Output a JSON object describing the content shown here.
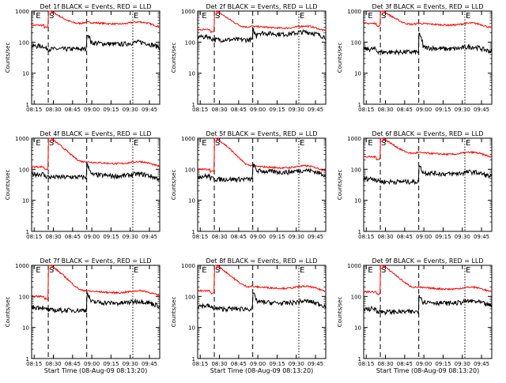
{
  "chart_data": [
    {
      "type": "line",
      "title": "Det 1f BLACK = Events, RED = LLD",
      "ylabel": "Counts/sec",
      "xlabel": "",
      "x_ticks": [
        "08:15",
        "08:30",
        "08:45",
        "09:00",
        "09:15",
        "09:30",
        "09:45"
      ],
      "y_ticks": [
        "1",
        "10",
        "100",
        "1000"
      ],
      "yscale": "log",
      "ylim": [
        1,
        1000
      ],
      "markers": [
        {
          "label": "E",
          "at": "08:15"
        },
        {
          "label": "S",
          "at": "08:26"
        },
        {
          "label": "E",
          "at": "09:32"
        }
      ],
      "series": [
        {
          "color": "#ff0000",
          "base": 350,
          "peak": 1100,
          "tail": 380
        },
        {
          "color": "#000000",
          "base": 75,
          "peak": 200,
          "tail": 85
        }
      ]
    },
    {
      "type": "line",
      "title": "Det 2f BLACK = Events, RED = LLD",
      "ylabel": "Counts/sec",
      "xlabel": "",
      "x_ticks": [
        "08:15",
        "08:30",
        "08:45",
        "09:00",
        "09:15",
        "09:30",
        "09:45"
      ],
      "y_ticks": [
        "1",
        "10",
        "100",
        "1000"
      ],
      "yscale": "log",
      "ylim": [
        1,
        1000
      ],
      "markers": [
        {
          "label": "E",
          "at": "08:15"
        },
        {
          "label": "S",
          "at": "08:26"
        },
        {
          "label": "E",
          "at": "09:32"
        }
      ],
      "series": [
        {
          "color": "#ff0000",
          "base": 250,
          "peak": 1100,
          "tail": 280
        },
        {
          "color": "#000000",
          "base": 150,
          "peak": 250,
          "tail": 180
        }
      ]
    },
    {
      "type": "line",
      "title": "Det 3f BLACK = Events, RED = LLD",
      "ylabel": "Counts/sec",
      "xlabel": "",
      "x_ticks": [
        "08:15",
        "08:30",
        "08:45",
        "09:00",
        "09:15",
        "09:30",
        "09:45"
      ],
      "y_ticks": [
        "1",
        "10",
        "100",
        "1000"
      ],
      "yscale": "log",
      "ylim": [
        1,
        1000
      ],
      "markers": [
        {
          "label": "E",
          "at": "08:15"
        },
        {
          "label": "S",
          "at": "08:26"
        },
        {
          "label": "E",
          "at": "09:32"
        }
      ],
      "series": [
        {
          "color": "#ff0000",
          "base": 400,
          "peak": 1100,
          "tail": 350
        },
        {
          "color": "#000000",
          "base": 60,
          "peak": 180,
          "tail": 60
        }
      ]
    },
    {
      "type": "line",
      "title": "Det 4f BLACK = Events, RED = LLD",
      "ylabel": "Counts/sec",
      "xlabel": "",
      "x_ticks": [
        "08:15",
        "08:30",
        "08:45",
        "09:00",
        "09:15",
        "09:30",
        "09:45"
      ],
      "y_ticks": [
        "1",
        "10",
        "100",
        "1000"
      ],
      "yscale": "log",
      "ylim": [
        1,
        1000
      ],
      "markers": [
        {
          "label": "E",
          "at": "08:15"
        },
        {
          "label": "S",
          "at": "08:26"
        },
        {
          "label": "E",
          "at": "09:32"
        }
      ],
      "series": [
        {
          "color": "#ff0000",
          "base": 120,
          "peak": 1100,
          "tail": 150
        },
        {
          "color": "#000000",
          "base": 70,
          "peak": 150,
          "tail": 60
        }
      ]
    },
    {
      "type": "line",
      "title": "Det 5f BLACK = Events, RED = LLD",
      "ylabel": "Counts/sec",
      "xlabel": "",
      "x_ticks": [
        "08:15",
        "08:30",
        "08:45",
        "09:00",
        "09:15",
        "09:30",
        "09:45"
      ],
      "y_ticks": [
        "1",
        "10",
        "100",
        "1000"
      ],
      "yscale": "log",
      "ylim": [
        1,
        1000
      ],
      "markers": [
        {
          "label": "E",
          "at": "08:15"
        },
        {
          "label": "S",
          "at": "08:26"
        },
        {
          "label": "E",
          "at": "09:32"
        }
      ],
      "series": [
        {
          "color": "#ff0000",
          "base": 100,
          "peak": 1100,
          "tail": 110
        },
        {
          "color": "#000000",
          "base": 60,
          "peak": 150,
          "tail": 80
        }
      ]
    },
    {
      "type": "line",
      "title": "Det 6f BLACK = Events, RED = LLD",
      "ylabel": "Counts/sec",
      "xlabel": "",
      "x_ticks": [
        "08:15",
        "08:30",
        "08:45",
        "09:00",
        "09:15",
        "09:30",
        "09:45"
      ],
      "y_ticks": [
        "1",
        "10",
        "100",
        "1000"
      ],
      "yscale": "log",
      "ylim": [
        1,
        1000
      ],
      "markers": [
        {
          "label": "E",
          "at": "08:15"
        },
        {
          "label": "S",
          "at": "08:26"
        },
        {
          "label": "E",
          "at": "09:32"
        }
      ],
      "series": [
        {
          "color": "#ff0000",
          "base": 250,
          "peak": 1100,
          "tail": 300
        },
        {
          "color": "#000000",
          "base": 50,
          "peak": 140,
          "tail": 70
        }
      ]
    },
    {
      "type": "line",
      "title": "Det 7f BLACK = Events, RED = LLD",
      "ylabel": "Counts/sec",
      "xlabel": "Start Time (08-Aug-09 08:13:20)",
      "x_ticks": [
        "08:15",
        "08:30",
        "08:45",
        "09:00",
        "09:15",
        "09:30",
        "09:45"
      ],
      "y_ticks": [
        "1",
        "10",
        "100",
        "1000"
      ],
      "yscale": "log",
      "ylim": [
        1,
        1000
      ],
      "markers": [
        {
          "label": "E",
          "at": "08:15"
        },
        {
          "label": "S",
          "at": "08:26"
        },
        {
          "label": "E",
          "at": "09:32"
        }
      ],
      "series": [
        {
          "color": "#ff0000",
          "base": 100,
          "peak": 1100,
          "tail": 130
        },
        {
          "color": "#000000",
          "base": 45,
          "peak": 130,
          "tail": 60
        }
      ]
    },
    {
      "type": "line",
      "title": "Det 8f BLACK = Events, RED = LLD",
      "ylabel": "Counts/sec",
      "xlabel": "Start Time (08-Aug-09 08:13:20)",
      "x_ticks": [
        "08:15",
        "08:30",
        "08:45",
        "09:00",
        "09:15",
        "09:30",
        "09:45"
      ],
      "y_ticks": [
        "1",
        "10",
        "100",
        "1000"
      ],
      "yscale": "log",
      "ylim": [
        1,
        1000
      ],
      "markers": [
        {
          "label": "E",
          "at": "08:15"
        },
        {
          "label": "S",
          "at": "08:26"
        },
        {
          "label": "E",
          "at": "09:32"
        }
      ],
      "series": [
        {
          "color": "#ff0000",
          "base": 150,
          "peak": 1100,
          "tail": 180
        },
        {
          "color": "#000000",
          "base": 50,
          "peak": 130,
          "tail": 60
        }
      ]
    },
    {
      "type": "line",
      "title": "Det 9f BLACK = Events, RED = LLD",
      "ylabel": "Counts/sec",
      "xlabel": "Start Time (08-Aug-09 08:13:20)",
      "x_ticks": [
        "08:15",
        "08:30",
        "08:45",
        "09:00",
        "09:15",
        "09:30",
        "09:45"
      ],
      "y_ticks": [
        "1",
        "10",
        "100",
        "1000"
      ],
      "yscale": "log",
      "ylim": [
        1,
        1000
      ],
      "markers": [
        {
          "label": "E",
          "at": "08:15"
        },
        {
          "label": "S",
          "at": "08:26"
        },
        {
          "label": "E",
          "at": "09:32"
        }
      ],
      "series": [
        {
          "color": "#ff0000",
          "base": 140,
          "peak": 1100,
          "tail": 170
        },
        {
          "color": "#000000",
          "base": 40,
          "peak": 120,
          "tail": 60
        }
      ]
    }
  ]
}
